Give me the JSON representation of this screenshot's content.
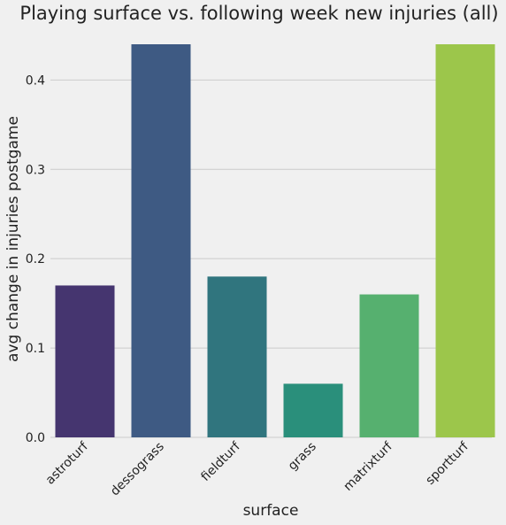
{
  "chart_data": {
    "type": "bar",
    "title": "Playing surface vs. following week new injuries (all)",
    "xlabel": "surface",
    "ylabel": "avg change in injuries postgame",
    "categories": [
      "astroturf",
      "dessograss",
      "fieldturf",
      "grass",
      "matrixturf",
      "sportturf"
    ],
    "values": [
      0.17,
      0.44,
      0.18,
      0.06,
      0.16,
      0.44
    ],
    "colors": [
      "#45356f",
      "#3e5a83",
      "#30757e",
      "#2a8f7b",
      "#56b06f",
      "#9cc64b"
    ],
    "ylim": [
      0,
      0.44
    ],
    "yticks": [
      "0.0",
      "0.1",
      "0.2",
      "0.3",
      "0.4"
    ],
    "grid": true,
    "background": "#f0f0f0"
  }
}
